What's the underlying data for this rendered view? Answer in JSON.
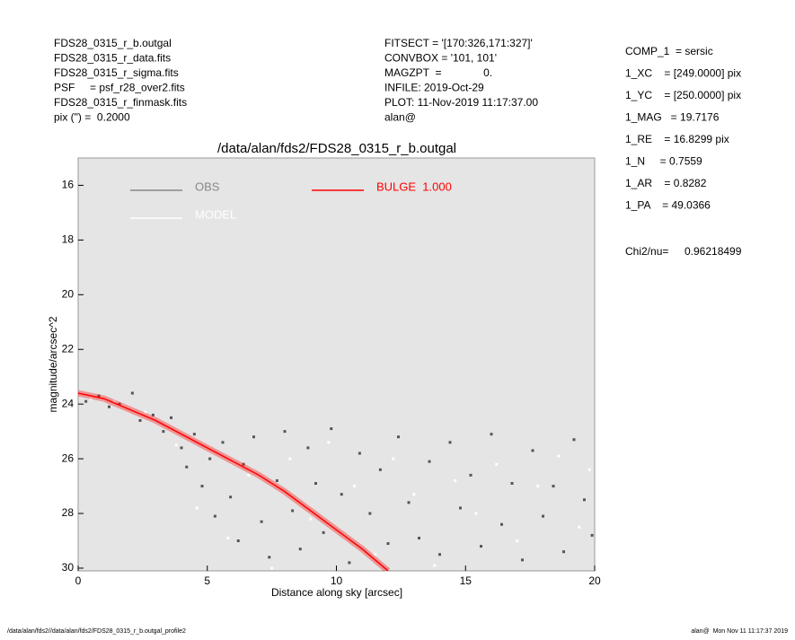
{
  "header": {
    "left": [
      "FDS28_0315_r_b.outgal",
      "FDS28_0315_r_data.fits",
      "FDS28_0315_r_sigma.fits",
      "PSF     = psf_r28_over2.fits",
      "FDS28_0315_r_finmask.fits",
      "pix (\") =  0.2000"
    ],
    "middle": [
      "FITSECT = '[170:326,171:327]'",
      "CONVBOX = '101, 101'",
      "MAGZPT  =              0.",
      "INFILE: 2019-Oct-29",
      "PLOT: 11-Nov-2019 11:17:37.00",
      "alan@"
    ],
    "right": [
      "COMP_1  = sersic",
      "1_XC    = [249.0000] pix",
      "1_YC    = [250.0000] pix",
      "1_MAG   = 19.7176",
      "1_RE    = 16.8299 pix",
      "1_N     = 0.7559",
      "1_AR    = 0.8282",
      "1_PA    = 49.0366"
    ],
    "chi2_label": "Chi2/nu=",
    "chi2_value": "0.96218499"
  },
  "footer": {
    "left": "/data/alan/fds2//data/alan/fds2/FDS28_0315_r_b.outgal_profile2",
    "right": "alan@  Mon Nov 11 11:17:37 2019"
  },
  "chart_data": {
    "type": "scatter",
    "title": "/data/alan/fds2/FDS28_0315_r_b.outgal",
    "x_label": "Distance along sky [arcsec]",
    "y_label": "magnitude/arcsec^2",
    "xlim": [
      0,
      20
    ],
    "ylim": [
      30.1,
      15
    ],
    "xticks": [
      0,
      5,
      10,
      15,
      20
    ],
    "yticks": [
      16,
      18,
      20,
      22,
      24,
      26,
      28,
      30
    ],
    "background": "#e5e5e5",
    "series": [
      {
        "name": "OBS",
        "color": "#888888",
        "point_color": "#555555",
        "style": "points",
        "x": [
          0.3,
          0.8,
          1.2,
          1.6,
          2.1,
          2.4,
          2.9,
          3.3,
          3.6,
          4.0,
          4.2,
          4.5,
          4.8,
          5.1,
          5.3,
          5.6,
          5.9,
          6.2,
          6.4,
          6.8,
          7.1,
          7.4,
          7.7,
          8.0,
          8.3,
          8.6,
          8.9,
          9.2,
          9.5,
          9.8,
          10.2,
          10.5,
          10.9,
          11.3,
          11.7,
          12.0,
          12.4,
          12.8,
          13.2,
          13.6,
          14.0,
          14.4,
          14.8,
          15.2,
          15.6,
          16.0,
          16.4,
          16.8,
          17.2,
          17.6,
          18.0,
          18.4,
          18.8,
          19.2,
          19.6,
          19.9
        ],
        "values": [
          23.9,
          23.7,
          24.1,
          24.0,
          23.6,
          24.6,
          24.4,
          25.0,
          24.5,
          25.6,
          26.3,
          25.1,
          27.0,
          26.0,
          28.1,
          25.4,
          27.4,
          29.0,
          26.2,
          25.2,
          28.3,
          29.6,
          26.8,
          25.0,
          27.9,
          29.3,
          25.6,
          26.9,
          28.7,
          24.9,
          27.3,
          29.8,
          25.8,
          28.0,
          26.4,
          29.1,
          25.2,
          27.6,
          28.9,
          26.1,
          29.5,
          25.4,
          27.8,
          26.6,
          29.2,
          25.1,
          28.4,
          26.9,
          29.7,
          25.7,
          28.1,
          27.0,
          29.4,
          25.3,
          27.5,
          28.8
        ]
      },
      {
        "name": "MODEL",
        "color": "#ffffff",
        "point_color": "#ffffff",
        "style": "points",
        "x": [
          0.5,
          1.4,
          2.6,
          3.8,
          4.6,
          5.8,
          6.6,
          7.5,
          8.2,
          9.0,
          9.7,
          10.7,
          11.5,
          12.2,
          13.0,
          13.8,
          14.6,
          15.4,
          16.2,
          17.0,
          17.8,
          18.6,
          19.4,
          19.8
        ],
        "values": [
          23.8,
          23.9,
          24.3,
          25.5,
          27.8,
          28.9,
          26.6,
          30.0,
          26.0,
          28.2,
          25.4,
          27.0,
          29.5,
          26.0,
          27.3,
          29.9,
          26.8,
          28.0,
          26.2,
          29.0,
          27.0,
          25.9,
          28.5,
          26.4
        ]
      },
      {
        "name": "BULGE  1.000",
        "color": "#ff0000",
        "point_color": "#ff0000",
        "style": "line",
        "x": [
          0,
          1,
          2,
          3,
          4,
          5,
          6,
          7,
          8,
          9,
          10,
          11,
          12
        ],
        "values": [
          23.6,
          23.8,
          24.2,
          24.6,
          25.1,
          25.6,
          26.1,
          26.6,
          27.2,
          27.9,
          28.6,
          29.3,
          30.1
        ]
      }
    ]
  }
}
